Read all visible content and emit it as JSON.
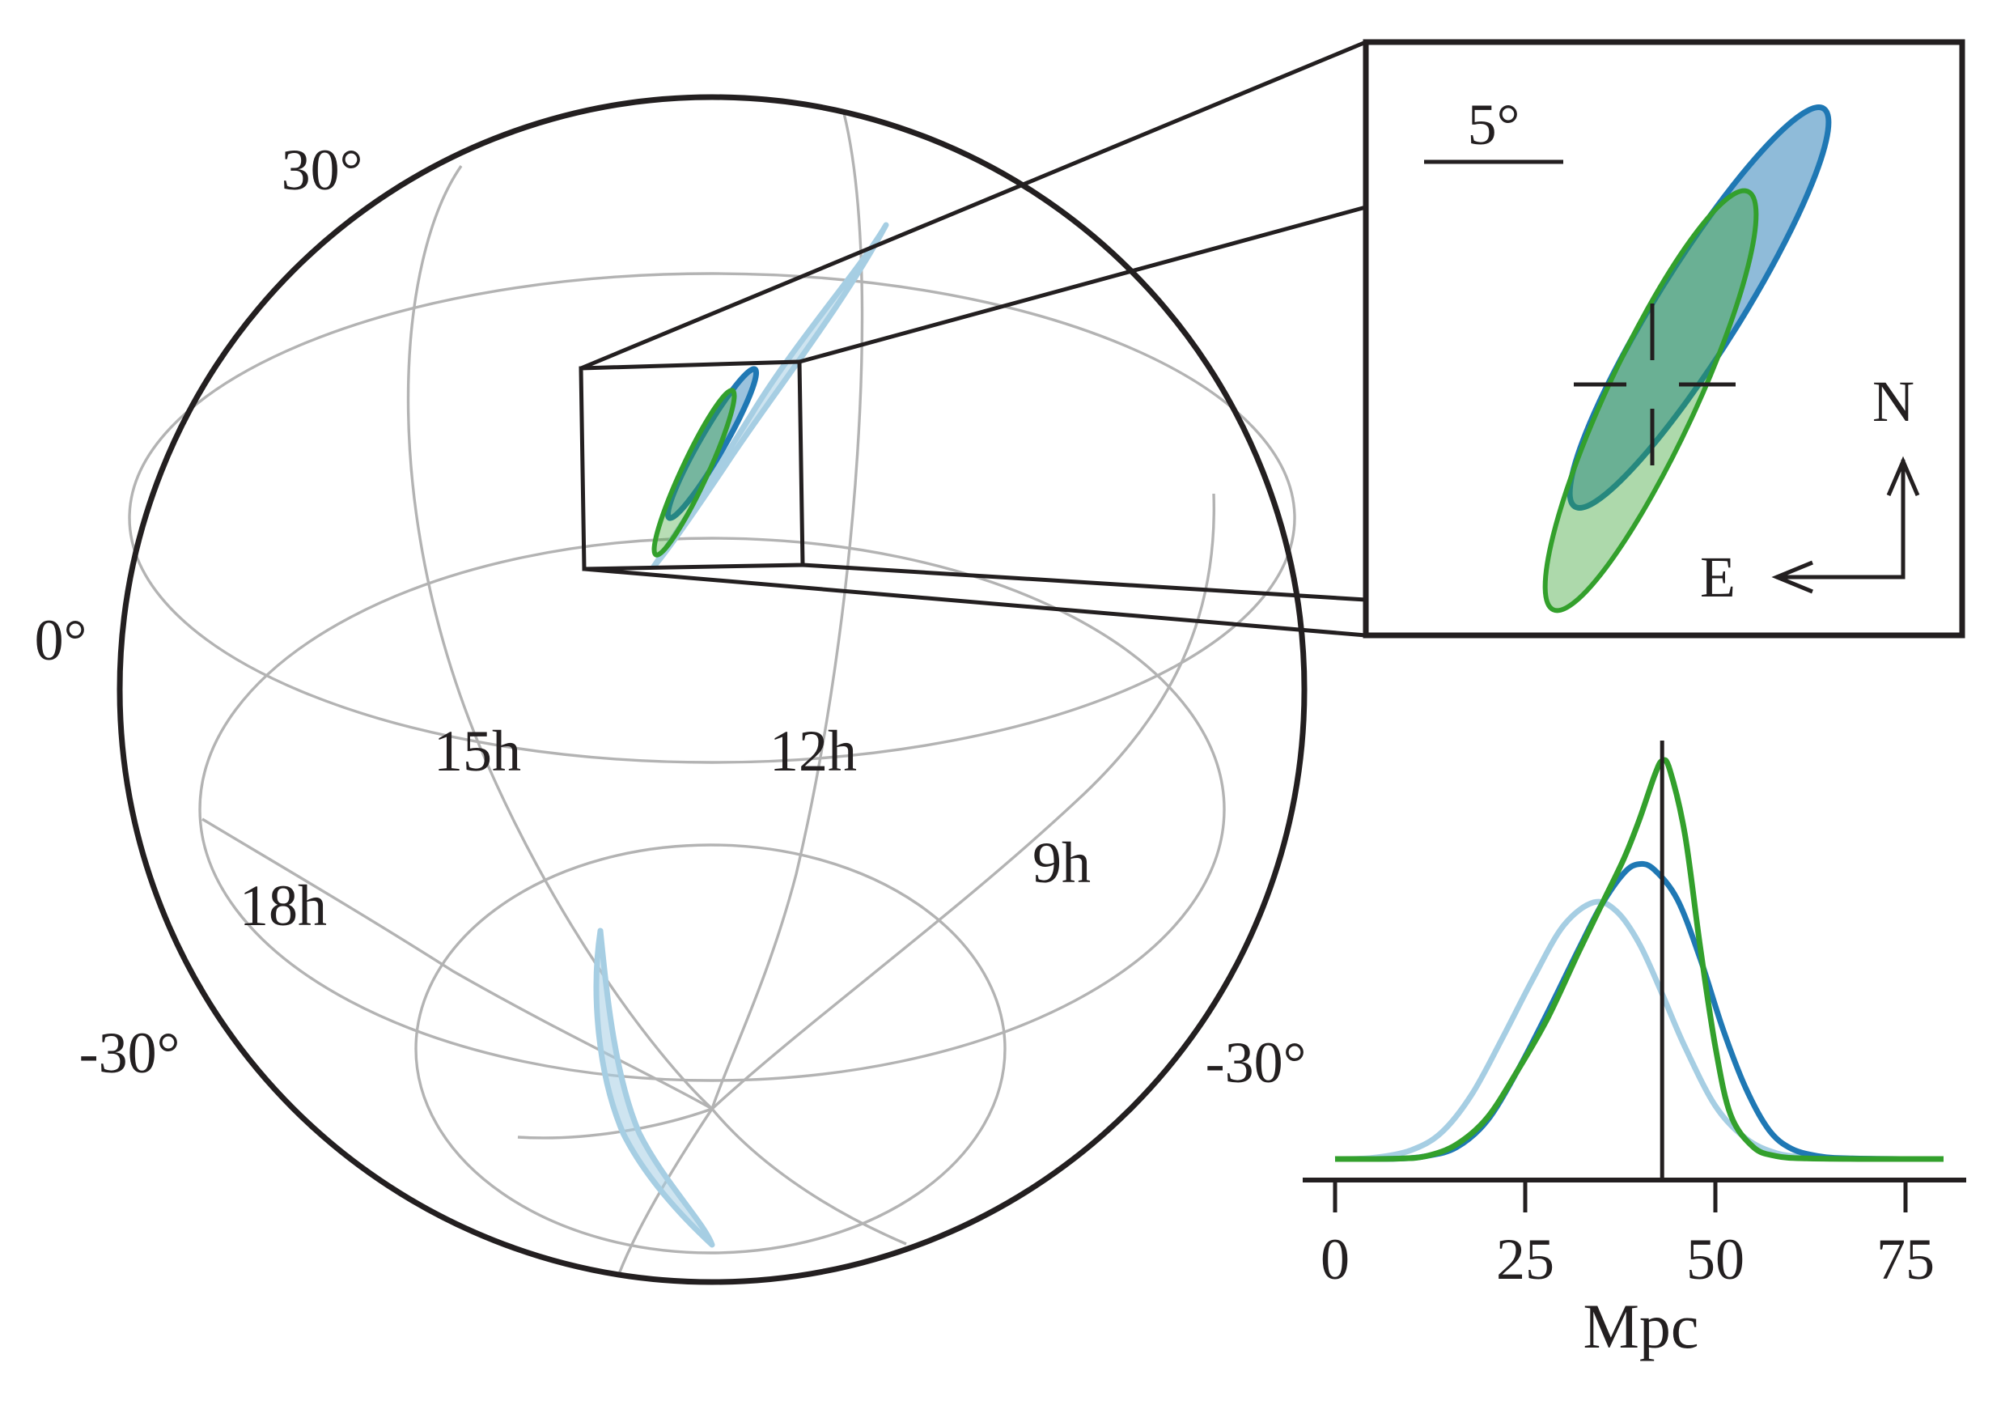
{
  "colors": {
    "light_blue": "#a6cee3",
    "blue": "#1f78b4",
    "green": "#33a02c",
    "ink": "#231f20",
    "grid": "#b3b3b3"
  },
  "globe": {
    "dec_labels": [
      "30°",
      "0°",
      "-30°",
      "-30°"
    ],
    "ra_labels": [
      "15h",
      "12h",
      "18h",
      "9h"
    ]
  },
  "inset": {
    "scale_label": "5°",
    "north_label": "N",
    "east_label": "E"
  },
  "chart_data": {
    "type": "line",
    "title": "",
    "xlabel": "Mpc",
    "ylabel": "",
    "xlim": [
      0,
      80
    ],
    "xticks": [
      0,
      25,
      50,
      75
    ],
    "xtick_labels": [
      "0",
      "25",
      "50",
      "75"
    ],
    "marker_line_x": 43,
    "series": [
      {
        "color": "#a6cee3",
        "x": [
          0,
          5,
          10,
          14,
          18,
          22,
          26,
          30,
          34,
          37,
          40,
          43,
          46,
          50,
          54,
          58,
          62,
          66,
          70,
          75,
          80
        ],
        "y": [
          0.0,
          0.004,
          0.03,
          0.09,
          0.22,
          0.41,
          0.61,
          0.79,
          0.87,
          0.84,
          0.73,
          0.56,
          0.38,
          0.18,
          0.07,
          0.02,
          0.006,
          0.002,
          0.0,
          0.0,
          0.0
        ]
      },
      {
        "color": "#1f78b4",
        "x": [
          0,
          8,
          12,
          16,
          20,
          24,
          28,
          32,
          35,
          38,
          40,
          42,
          45,
          48,
          51,
          54,
          57,
          60,
          64,
          68,
          75,
          80
        ],
        "y": [
          0.0,
          0.001,
          0.01,
          0.04,
          0.13,
          0.3,
          0.5,
          0.71,
          0.86,
          0.97,
          1.0,
          0.98,
          0.88,
          0.68,
          0.44,
          0.24,
          0.1,
          0.035,
          0.008,
          0.002,
          0.0,
          0.0
        ]
      },
      {
        "color": "#33a02c",
        "x": [
          0,
          8,
          12,
          16,
          20,
          24,
          28,
          32,
          35,
          38,
          40,
          42,
          43,
          44,
          46,
          48,
          50,
          52,
          55,
          58,
          62,
          70,
          80
        ],
        "y": [
          0.0,
          0.001,
          0.01,
          0.05,
          0.14,
          0.3,
          0.48,
          0.7,
          0.86,
          1.02,
          1.15,
          1.3,
          1.35,
          1.32,
          1.1,
          0.72,
          0.38,
          0.15,
          0.04,
          0.01,
          0.002,
          0.0,
          0.0
        ]
      }
    ]
  }
}
